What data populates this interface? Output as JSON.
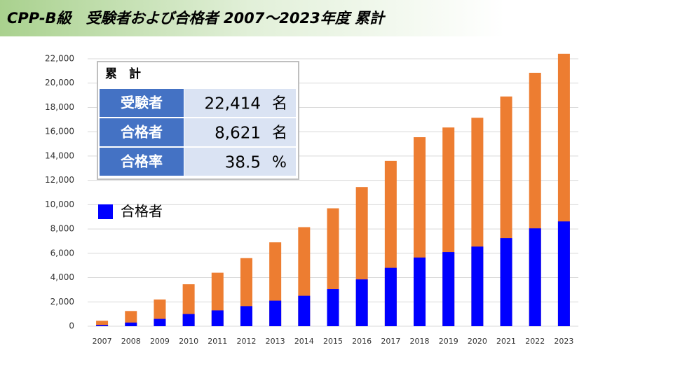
{
  "title": "CPP-B級　受験者および合格者  2007～2023年度  累計",
  "chart_data": {
    "type": "bar",
    "overlay": true,
    "categories": [
      "2007",
      "2008",
      "2009",
      "2010",
      "2011",
      "2012",
      "2013",
      "2014",
      "2015",
      "2016",
      "2017",
      "2018",
      "2019",
      "2020",
      "2021",
      "2022",
      "2023"
    ],
    "series": [
      {
        "name": "受験者",
        "color": "#ed7d31",
        "values": [
          450,
          1250,
          2200,
          3450,
          4400,
          5600,
          6900,
          8150,
          9700,
          11450,
          13600,
          15550,
          16350,
          17150,
          18900,
          20850,
          22414
        ]
      },
      {
        "name": "合格者",
        "color": "#0000ff",
        "values": [
          100,
          300,
          600,
          1000,
          1300,
          1650,
          2100,
          2500,
          3050,
          3850,
          4800,
          5650,
          6100,
          6550,
          7250,
          8050,
          8621
        ]
      }
    ],
    "legend_series": [
      1
    ],
    "ylim": [
      0,
      22000
    ],
    "yticks": [
      0,
      {
        "value": 2000,
        "label": "2,000"
      },
      {
        "value": 4000,
        "label": "4,000"
      },
      {
        "value": 6000,
        "label": "6,000"
      },
      {
        "value": 8000,
        "label": "8,000"
      },
      {
        "value": 10000,
        "label": "10,000"
      },
      {
        "value": 12000,
        "label": "12,000"
      },
      {
        "value": 14000,
        "label": "14,000"
      },
      {
        "value": 16000,
        "label": "16,000"
      },
      {
        "value": 18000,
        "label": "18,000"
      },
      {
        "value": 20000,
        "label": "20,000"
      },
      {
        "value": 22000,
        "label": "22,000"
      }
    ],
    "grid": true
  },
  "summary": {
    "title": "累　計",
    "rows": [
      {
        "value": 22414,
        "value_label": "22,414",
        "unit": "名"
      },
      {
        "value": 8621,
        "value_label": "8,621",
        "unit": "名"
      },
      {
        "label": "合格率",
        "value": 38.5,
        "unit": "%"
      }
    ]
  }
}
